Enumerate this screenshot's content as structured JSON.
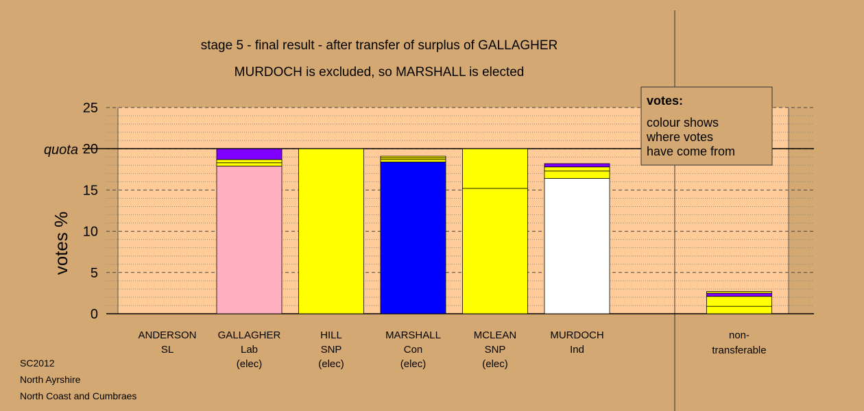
{
  "chart_data": {
    "type": "bar",
    "stacked": true,
    "title": "stage 5 - final result - after transfer of surplus of GALLAGHER",
    "subtitle": "MURDOCH is excluded, so MARSHALL is elected",
    "ylabel": "votes %",
    "quota_label": "quota",
    "quota_value": 20,
    "ylim": [
      0,
      25
    ],
    "yticks": [
      "0",
      "5",
      "10",
      "15",
      "20",
      "25"
    ],
    "grid": true,
    "categories": [
      {
        "name": "ANDERSON",
        "party": "SL",
        "status": ""
      },
      {
        "name": "GALLAGHER",
        "party": "Lab",
        "status": "(elec)"
      },
      {
        "name": "HILL",
        "party": "SNP",
        "status": "(elec)"
      },
      {
        "name": "MARSHALL",
        "party": "Con",
        "status": "(elec)"
      },
      {
        "name": "MCLEAN",
        "party": "SNP",
        "status": "(elec)"
      },
      {
        "name": "MURDOCH",
        "party": "Ind",
        "status": ""
      }
    ],
    "stacks": [
      [],
      [
        {
          "value": 17.9,
          "color": "#FFB0C0"
        },
        {
          "value": 0.4,
          "color": "#FFFF00"
        },
        {
          "value": 0.4,
          "color": "#FFFF00"
        },
        {
          "value": 1.3,
          "color": "#8000FF"
        }
      ],
      [
        {
          "value": 20.0,
          "color": "#FFFF00"
        }
      ],
      [
        {
          "value": 18.4,
          "color": "#0000FF"
        },
        {
          "value": 0.3,
          "color": "#FFFF00"
        },
        {
          "value": 0.2,
          "color": "#FFFF00"
        },
        {
          "value": 0.2,
          "color": "#FFFF00"
        }
      ],
      [
        {
          "value": 15.2,
          "color": "#FFFF00"
        },
        {
          "value": 4.8,
          "color": "#FFFF00"
        }
      ],
      [
        {
          "value": 16.4,
          "color": "#FFFFFF"
        },
        {
          "value": 0.9,
          "color": "#FFFF00"
        },
        {
          "value": 0.5,
          "color": "#FFFF00"
        },
        {
          "value": 0.4,
          "color": "#8000FF"
        }
      ]
    ],
    "nontransferable": {
      "label_line1": "non-",
      "label_line2": "transferable",
      "stack": [
        {
          "value": 0.9,
          "color": "#FFFF00"
        },
        {
          "value": 1.2,
          "color": "#FFFF00"
        },
        {
          "value": 0.4,
          "color": "#8000FF"
        },
        {
          "value": 0.2,
          "color": "#FFFF00"
        }
      ]
    },
    "legend": {
      "title": "votes:",
      "lines": [
        "colour shows",
        "where votes",
        "have come from"
      ],
      "placement": "top-right"
    }
  },
  "footer": [
    "SC2012",
    "North Ayrshire",
    "North Coast and Cumbraes"
  ]
}
